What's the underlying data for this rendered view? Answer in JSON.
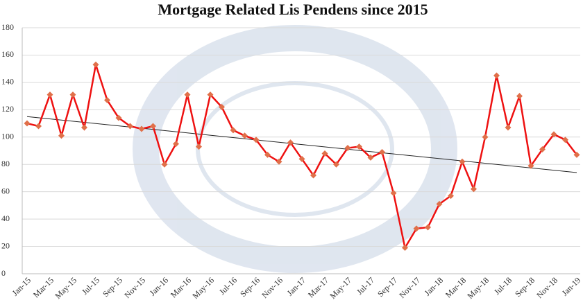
{
  "chart_data": {
    "type": "line",
    "title": "Mortgage Related Lis Pendens since 2015",
    "categories": [
      "Jan-15",
      null,
      "Mar-15",
      null,
      "May-15",
      null,
      "Jul-15",
      null,
      "Sep-15",
      null,
      "Nov-15",
      null,
      "Jan-16",
      null,
      "Mar-16",
      null,
      "May-16",
      null,
      "Jul-16",
      null,
      "Sep-16",
      null,
      "Nov-16",
      null,
      "Jan-17",
      null,
      "Mar-17",
      null,
      "May-17",
      null,
      "Jul-17",
      null,
      "Sep-17",
      null,
      "Nov-17",
      null,
      "Jan-18",
      null,
      "Mar-18",
      null,
      "May-18",
      null,
      "Jul-18",
      null,
      "Sep-18",
      null,
      "Nov-18",
      null,
      "Jan-19"
    ],
    "series": [
      {
        "name": "Lis Pendens",
        "color": "#ee1111",
        "values": [
          110,
          108,
          131,
          101,
          131,
          107,
          153,
          127,
          114,
          108,
          106,
          108,
          80,
          95,
          131,
          93,
          131,
          122,
          105,
          101,
          98,
          87,
          82,
          96,
          84,
          72,
          88,
          80,
          92,
          93,
          85,
          89,
          59,
          19,
          33,
          34,
          51,
          57,
          82,
          62,
          100,
          145,
          107,
          130,
          79,
          91,
          102,
          98,
          87
        ]
      }
    ],
    "trend": {
      "color": "#222222",
      "values": [
        115,
        74
      ]
    },
    "ylim": [
      0,
      180
    ],
    "yticks": [
      0,
      20,
      40,
      60,
      80,
      100,
      120,
      140,
      160,
      180
    ],
    "grid": true
  }
}
